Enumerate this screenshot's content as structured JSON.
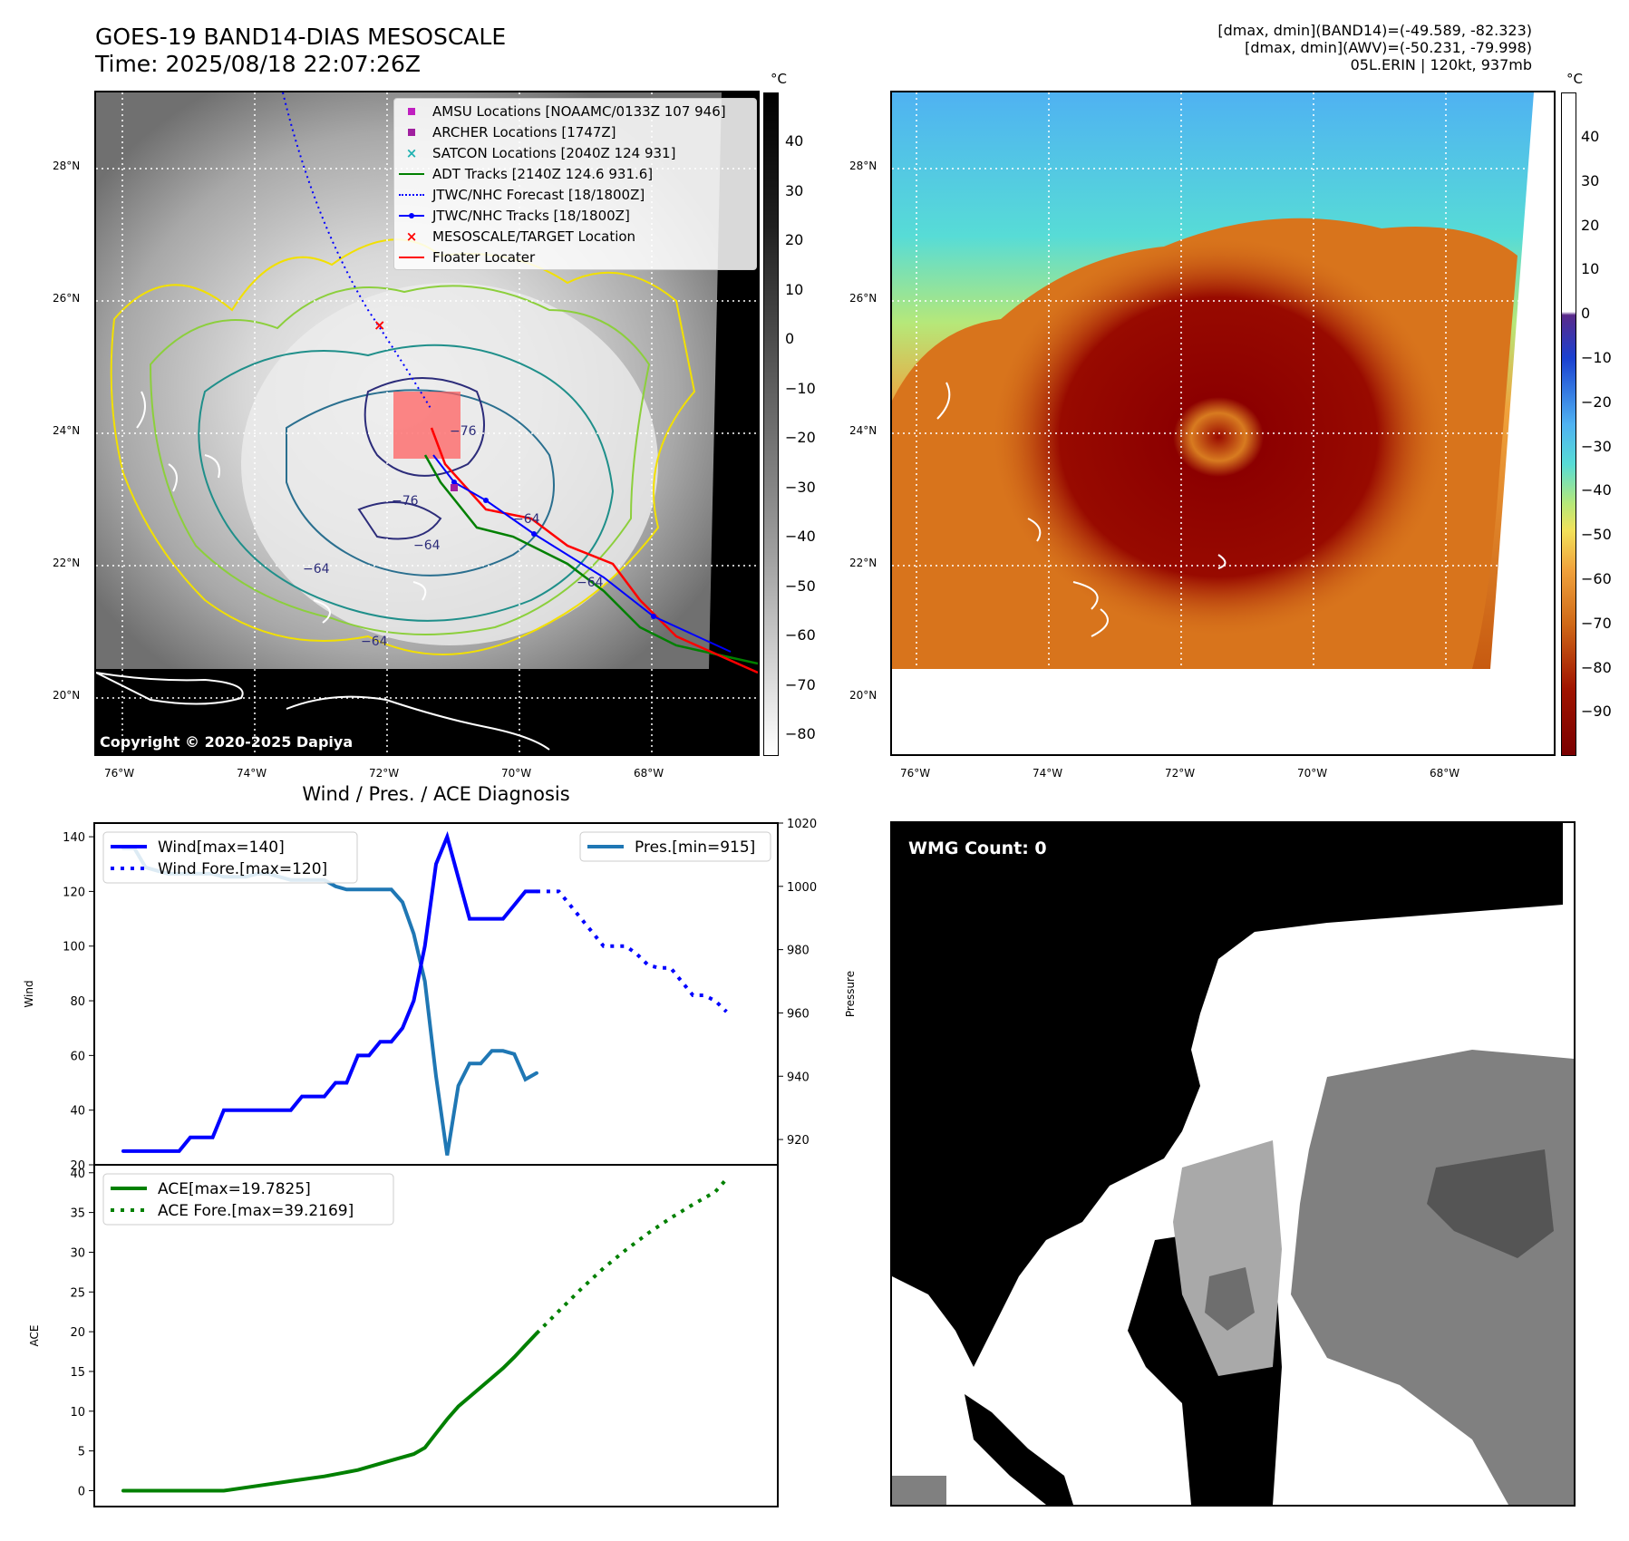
{
  "header": {
    "title_line1": "GOES-19 BAND14-DIAS MESOSCALE",
    "title_line2": "Time: 2025/08/18 22:07:26Z",
    "info_line1": "[dmax, dmin](BAND14)=(-49.589, -82.323)",
    "info_line2": "[dmax, dmin](AWV)=(-50.231, -79.998)",
    "info_line3": "05L.ERIN | 120kt, 937mb"
  },
  "map_left": {
    "copyright": "Copyright © 2020-2025 Dapiya",
    "lat_labels": [
      "28°N",
      "26°N",
      "24°N",
      "22°N",
      "20°N"
    ],
    "lon_labels": [
      "76°W",
      "74°W",
      "72°W",
      "70°W",
      "68°W"
    ],
    "colorbar_unit": "°C",
    "colorbar_ticks": [
      "40",
      "30",
      "20",
      "10",
      "0",
      "−10",
      "−20",
      "−30",
      "−40",
      "−50",
      "−60",
      "−70",
      "−80"
    ],
    "contour_labels": [
      "−76",
      "−76",
      "−64",
      "−64",
      "−64",
      "−64",
      "−64"
    ],
    "legend": [
      {
        "label": "AMSU Locations [NOAAMC/0133Z 107 946]",
        "icon": "magenta-square",
        "color": "#c020c0"
      },
      {
        "label": "ARCHER Locations [1747Z]",
        "icon": "purple-square",
        "color": "#a0209f"
      },
      {
        "label": "SATCON Locations [2040Z 124 931]",
        "icon": "cyan-x",
        "color": "#20b2b2"
      },
      {
        "label": "ADT Tracks [2140Z 124.6 931.6]",
        "icon": "green-line",
        "color": "#008000"
      },
      {
        "label": "JTWC/NHC Forecast [18/1800Z]",
        "icon": "blue-dotted-line",
        "color": "#0000ff"
      },
      {
        "label": "JTWC/NHC Tracks [18/1800Z]",
        "icon": "blue-dot-line",
        "color": "#0000ff"
      },
      {
        "label": "MESOSCALE/TARGET Location",
        "icon": "red-x",
        "color": "#ff0000"
      },
      {
        "label": "Floater Locater",
        "icon": "red-line",
        "color": "#ff0000"
      }
    ]
  },
  "map_right": {
    "lat_labels": [
      "28°N",
      "26°N",
      "24°N",
      "22°N",
      "20°N"
    ],
    "lon_labels": [
      "76°W",
      "74°W",
      "72°W",
      "70°W",
      "68°W"
    ],
    "colorbar_unit": "°C",
    "colorbar_ticks": [
      "40",
      "30",
      "20",
      "10",
      "0",
      "−10",
      "−20",
      "−30",
      "−40",
      "−50",
      "−60",
      "−70",
      "−80",
      "−90"
    ]
  },
  "wmg": {
    "label": "WMG Count: 0"
  },
  "chart_data": [
    {
      "type": "line",
      "title": "Wind / Pres. / ACE Diagnosis",
      "ylabel": "Wind",
      "y2label": "Pressure",
      "ylim": [
        20,
        145
      ],
      "y2lim": [
        912,
        1020
      ],
      "yticks": [
        "20",
        "40",
        "60",
        "80",
        "100",
        "120",
        "140"
      ],
      "y2ticks": [
        "920",
        "940",
        "960",
        "980",
        "1000",
        "1020"
      ],
      "series": [
        {
          "name": "Wind[max=140]",
          "color": "#0000ff",
          "style": "solid",
          "axis": "left",
          "points": [
            [
              0,
              25
            ],
            [
              1,
              25
            ],
            [
              2,
              25
            ],
            [
              3,
              25
            ],
            [
              4,
              25
            ],
            [
              5,
              25
            ],
            [
              6,
              30
            ],
            [
              7,
              30
            ],
            [
              8,
              30
            ],
            [
              9,
              40
            ],
            [
              10,
              40
            ],
            [
              11,
              40
            ],
            [
              12,
              40
            ],
            [
              13,
              40
            ],
            [
              14,
              40
            ],
            [
              15,
              40
            ],
            [
              16,
              45
            ],
            [
              17,
              45
            ],
            [
              18,
              45
            ],
            [
              19,
              50
            ],
            [
              20,
              50
            ],
            [
              21,
              60
            ],
            [
              22,
              60
            ],
            [
              23,
              65
            ],
            [
              24,
              65
            ],
            [
              25,
              70
            ],
            [
              26,
              80
            ],
            [
              27,
              100
            ],
            [
              28,
              130
            ],
            [
              29,
              140
            ],
            [
              30,
              125
            ],
            [
              31,
              110
            ],
            [
              32,
              110
            ],
            [
              33,
              110
            ],
            [
              34,
              110
            ],
            [
              35,
              115
            ],
            [
              36,
              120
            ],
            [
              37,
              120
            ]
          ]
        },
        {
          "name": "Wind Fore.[max=120]",
          "color": "#0000ff",
          "style": "dotted",
          "axis": "left",
          "points": [
            [
              37,
              120
            ],
            [
              38,
              120
            ],
            [
              39,
              120
            ],
            [
              40,
              115
            ],
            [
              41,
              110
            ],
            [
              42,
              105
            ],
            [
              43,
              100
            ],
            [
              44,
              100
            ],
            [
              45,
              100
            ],
            [
              46,
              97
            ],
            [
              47,
              93
            ],
            [
              48,
              92
            ],
            [
              49,
              92
            ],
            [
              50,
              87
            ],
            [
              51,
              82
            ],
            [
              52,
              82
            ],
            [
              53,
              80
            ],
            [
              54,
              76
            ]
          ]
        },
        {
          "name": "Pres.[min=915]",
          "color": "#1f77b4",
          "style": "solid",
          "axis": "right",
          "points": [
            [
              0,
              1012
            ],
            [
              1,
              1012
            ],
            [
              2,
              1006
            ],
            [
              3,
              1005
            ],
            [
              4,
              1004
            ],
            [
              5,
              1004
            ],
            [
              6,
              1004
            ],
            [
              7,
              1004
            ],
            [
              8,
              1004
            ],
            [
              9,
              1003
            ],
            [
              10,
              1003
            ],
            [
              11,
              1003
            ],
            [
              12,
              1004
            ],
            [
              13,
              1004
            ],
            [
              14,
              1003
            ],
            [
              15,
              1002
            ],
            [
              16,
              1002
            ],
            [
              17,
              1002
            ],
            [
              18,
              1002
            ],
            [
              19,
              1000
            ],
            [
              20,
              999
            ],
            [
              21,
              999
            ],
            [
              22,
              999
            ],
            [
              23,
              999
            ],
            [
              24,
              999
            ],
            [
              25,
              995
            ],
            [
              26,
              985
            ],
            [
              27,
              970
            ],
            [
              28,
              940
            ],
            [
              29,
              915
            ],
            [
              30,
              937
            ],
            [
              31,
              944
            ],
            [
              32,
              944
            ],
            [
              33,
              948
            ],
            [
              34,
              948
            ],
            [
              35,
              947
            ],
            [
              36,
              939
            ],
            [
              37,
              941
            ]
          ]
        }
      ]
    },
    {
      "type": "line",
      "ylabel": "ACE",
      "ylim": [
        -2,
        41
      ],
      "yticks": [
        "0",
        "5",
        "10",
        "15",
        "20",
        "25",
        "30",
        "35",
        "40"
      ],
      "series": [
        {
          "name": "ACE[max=19.7825]",
          "color": "#008000",
          "style": "solid",
          "points": [
            [
              0,
              0
            ],
            [
              3,
              0
            ],
            [
              6,
              0
            ],
            [
              9,
              0
            ],
            [
              12,
              0.6
            ],
            [
              15,
              1.2
            ],
            [
              18,
              1.8
            ],
            [
              21,
              2.6
            ],
            [
              24,
              3.8
            ],
            [
              26,
              4.6
            ],
            [
              27,
              5.4
            ],
            [
              28,
              7.2
            ],
            [
              29,
              9.0
            ],
            [
              30,
              10.6
            ],
            [
              31,
              11.8
            ],
            [
              32,
              13.0
            ],
            [
              33,
              14.2
            ],
            [
              34,
              15.4
            ],
            [
              35,
              16.8
            ],
            [
              36,
              18.3
            ],
            [
              37,
              19.78
            ]
          ]
        },
        {
          "name": "ACE Fore.[max=39.2169]",
          "color": "#008000",
          "style": "dotted",
          "points": [
            [
              37,
              19.78
            ],
            [
              39,
              22.6
            ],
            [
              41,
              25.4
            ],
            [
              43,
              28.0
            ],
            [
              45,
              30.3
            ],
            [
              47,
              32.4
            ],
            [
              49,
              34.3
            ],
            [
              51,
              36.0
            ],
            [
              53,
              37.6
            ],
            [
              54,
              39.2
            ]
          ]
        }
      ]
    }
  ]
}
